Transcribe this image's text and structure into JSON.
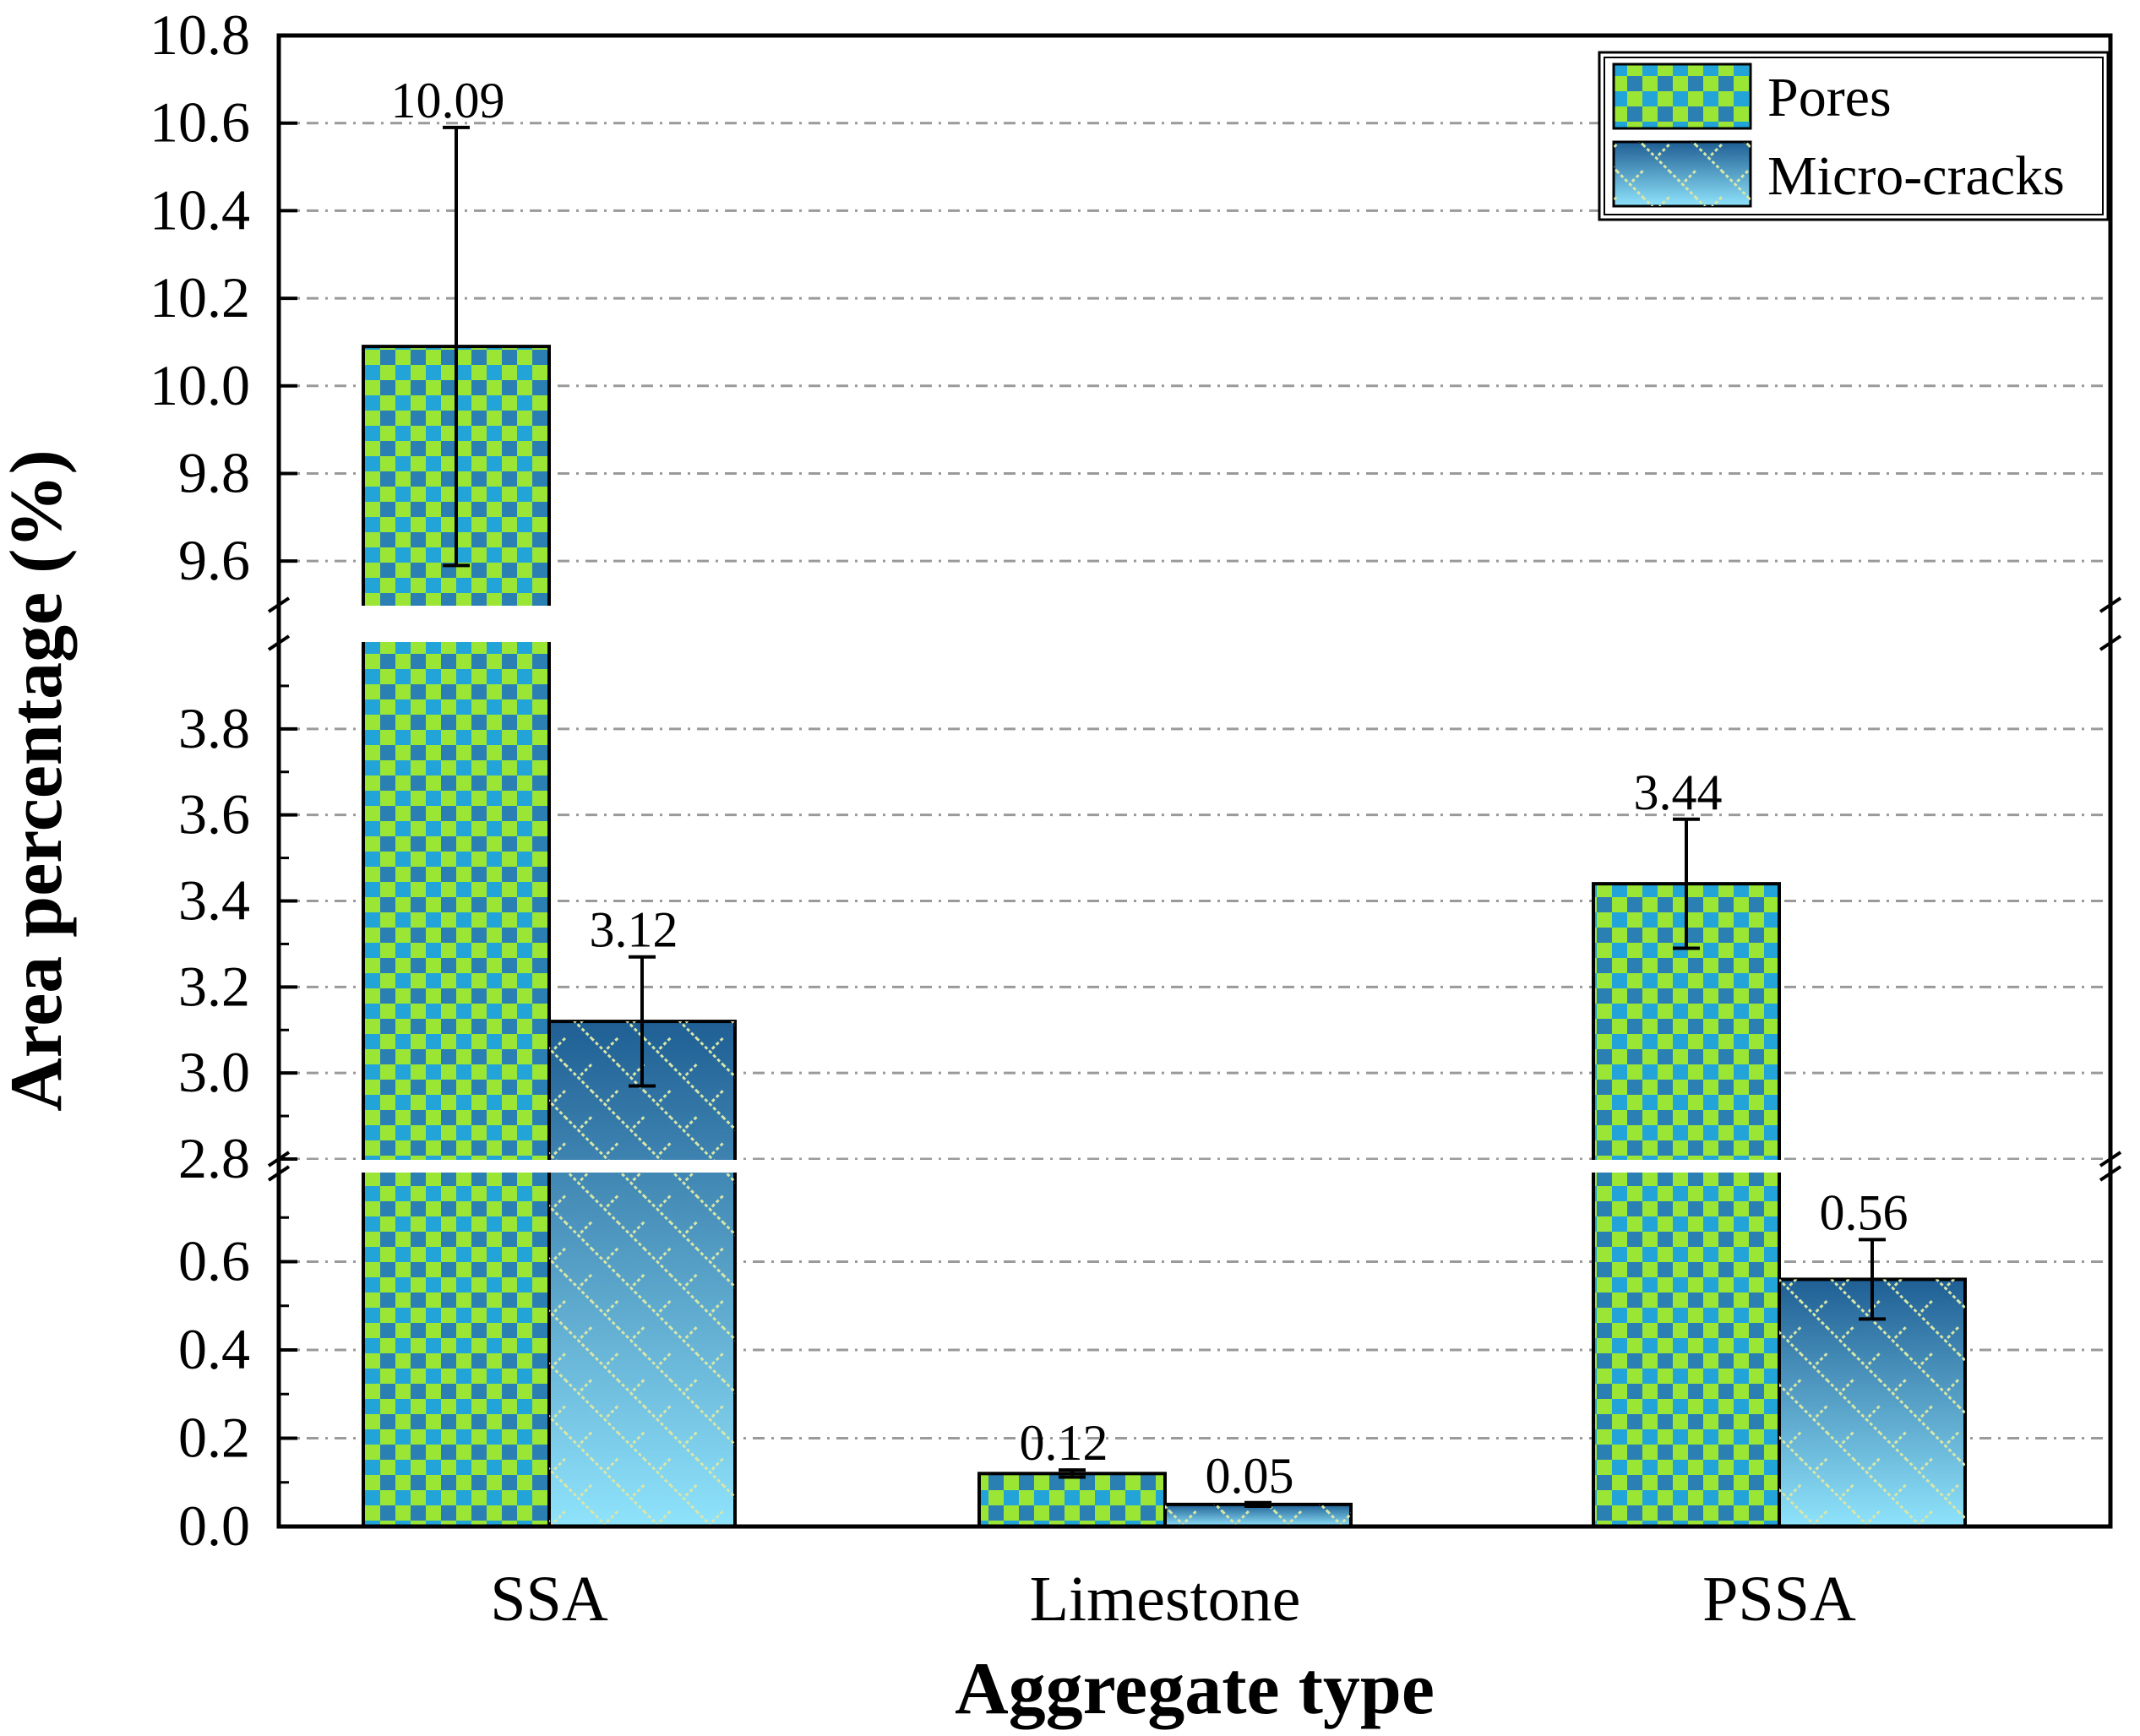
{
  "chart_data": {
    "type": "bar",
    "xlabel": "Aggregate type",
    "ylabel": "Area percentage (%)",
    "categories": [
      "SSA",
      "Limestone",
      "PSSA"
    ],
    "series": [
      {
        "name": "Pores",
        "values": [
          10.09,
          0.12,
          3.44
        ],
        "errors": [
          0.5,
          0.008,
          0.15
        ],
        "value_labels": [
          "10.09",
          "0.12",
          "3.44"
        ],
        "colors": [
          "#9be635",
          "#22a4d8",
          "#2b80b3"
        ]
      },
      {
        "name": "Micro-cracks",
        "values": [
          3.12,
          0.05,
          0.56
        ],
        "errors": [
          0.15,
          0.004,
          0.09
        ],
        "value_labels": [
          "3.12",
          "0.05",
          "0.56"
        ],
        "colors": [
          "#1f5f94",
          "#8fe3fb"
        ]
      }
    ],
    "y_segments": [
      {
        "range": [
          0,
          0.8
        ],
        "ticks": [
          "0.0",
          "0.2",
          "0.4",
          "0.6"
        ]
      },
      {
        "range": [
          2.8,
          4.0
        ],
        "ticks": [
          "2.8",
          "3.0",
          "3.2",
          "3.4",
          "3.6",
          "3.8"
        ]
      },
      {
        "range": [
          9.5,
          10.8
        ],
        "ticks": [
          "9.6",
          "9.8",
          "10.0",
          "10.2",
          "10.4",
          "10.6",
          "10.8"
        ]
      }
    ],
    "axis_breaks": true,
    "grid": true,
    "grid_style": "dash-dot",
    "legend_position": "top-right"
  }
}
